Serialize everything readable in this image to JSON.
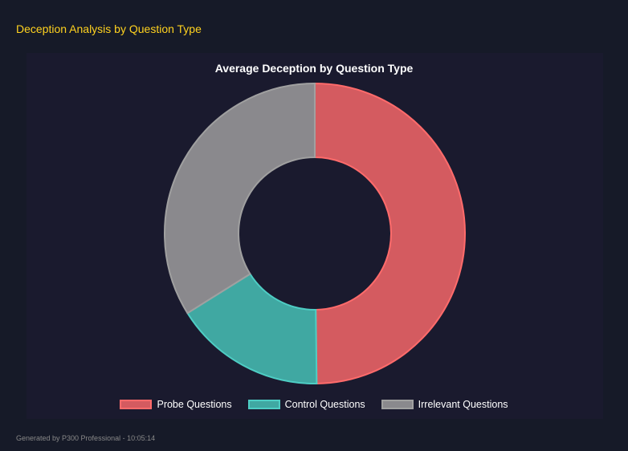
{
  "header": {
    "title": "Deception Analysis by Question Type"
  },
  "footer": {
    "text": "Generated by P300 Professional - 10:05:14"
  },
  "chart_data": {
    "type": "doughnut",
    "title": "Average Deception by Question Type",
    "legend_position": "bottom",
    "categories": [
      "Probe Questions",
      "Control Questions",
      "Irrelevant Questions"
    ],
    "values": [
      49.8,
      16.3,
      33.9
    ],
    "colors": {
      "fill": [
        "#d45b60",
        "#40a8a2",
        "#8a898d"
      ],
      "border": [
        "#ff6b6b",
        "#4ecdc4",
        "#a0a0a0"
      ]
    }
  }
}
